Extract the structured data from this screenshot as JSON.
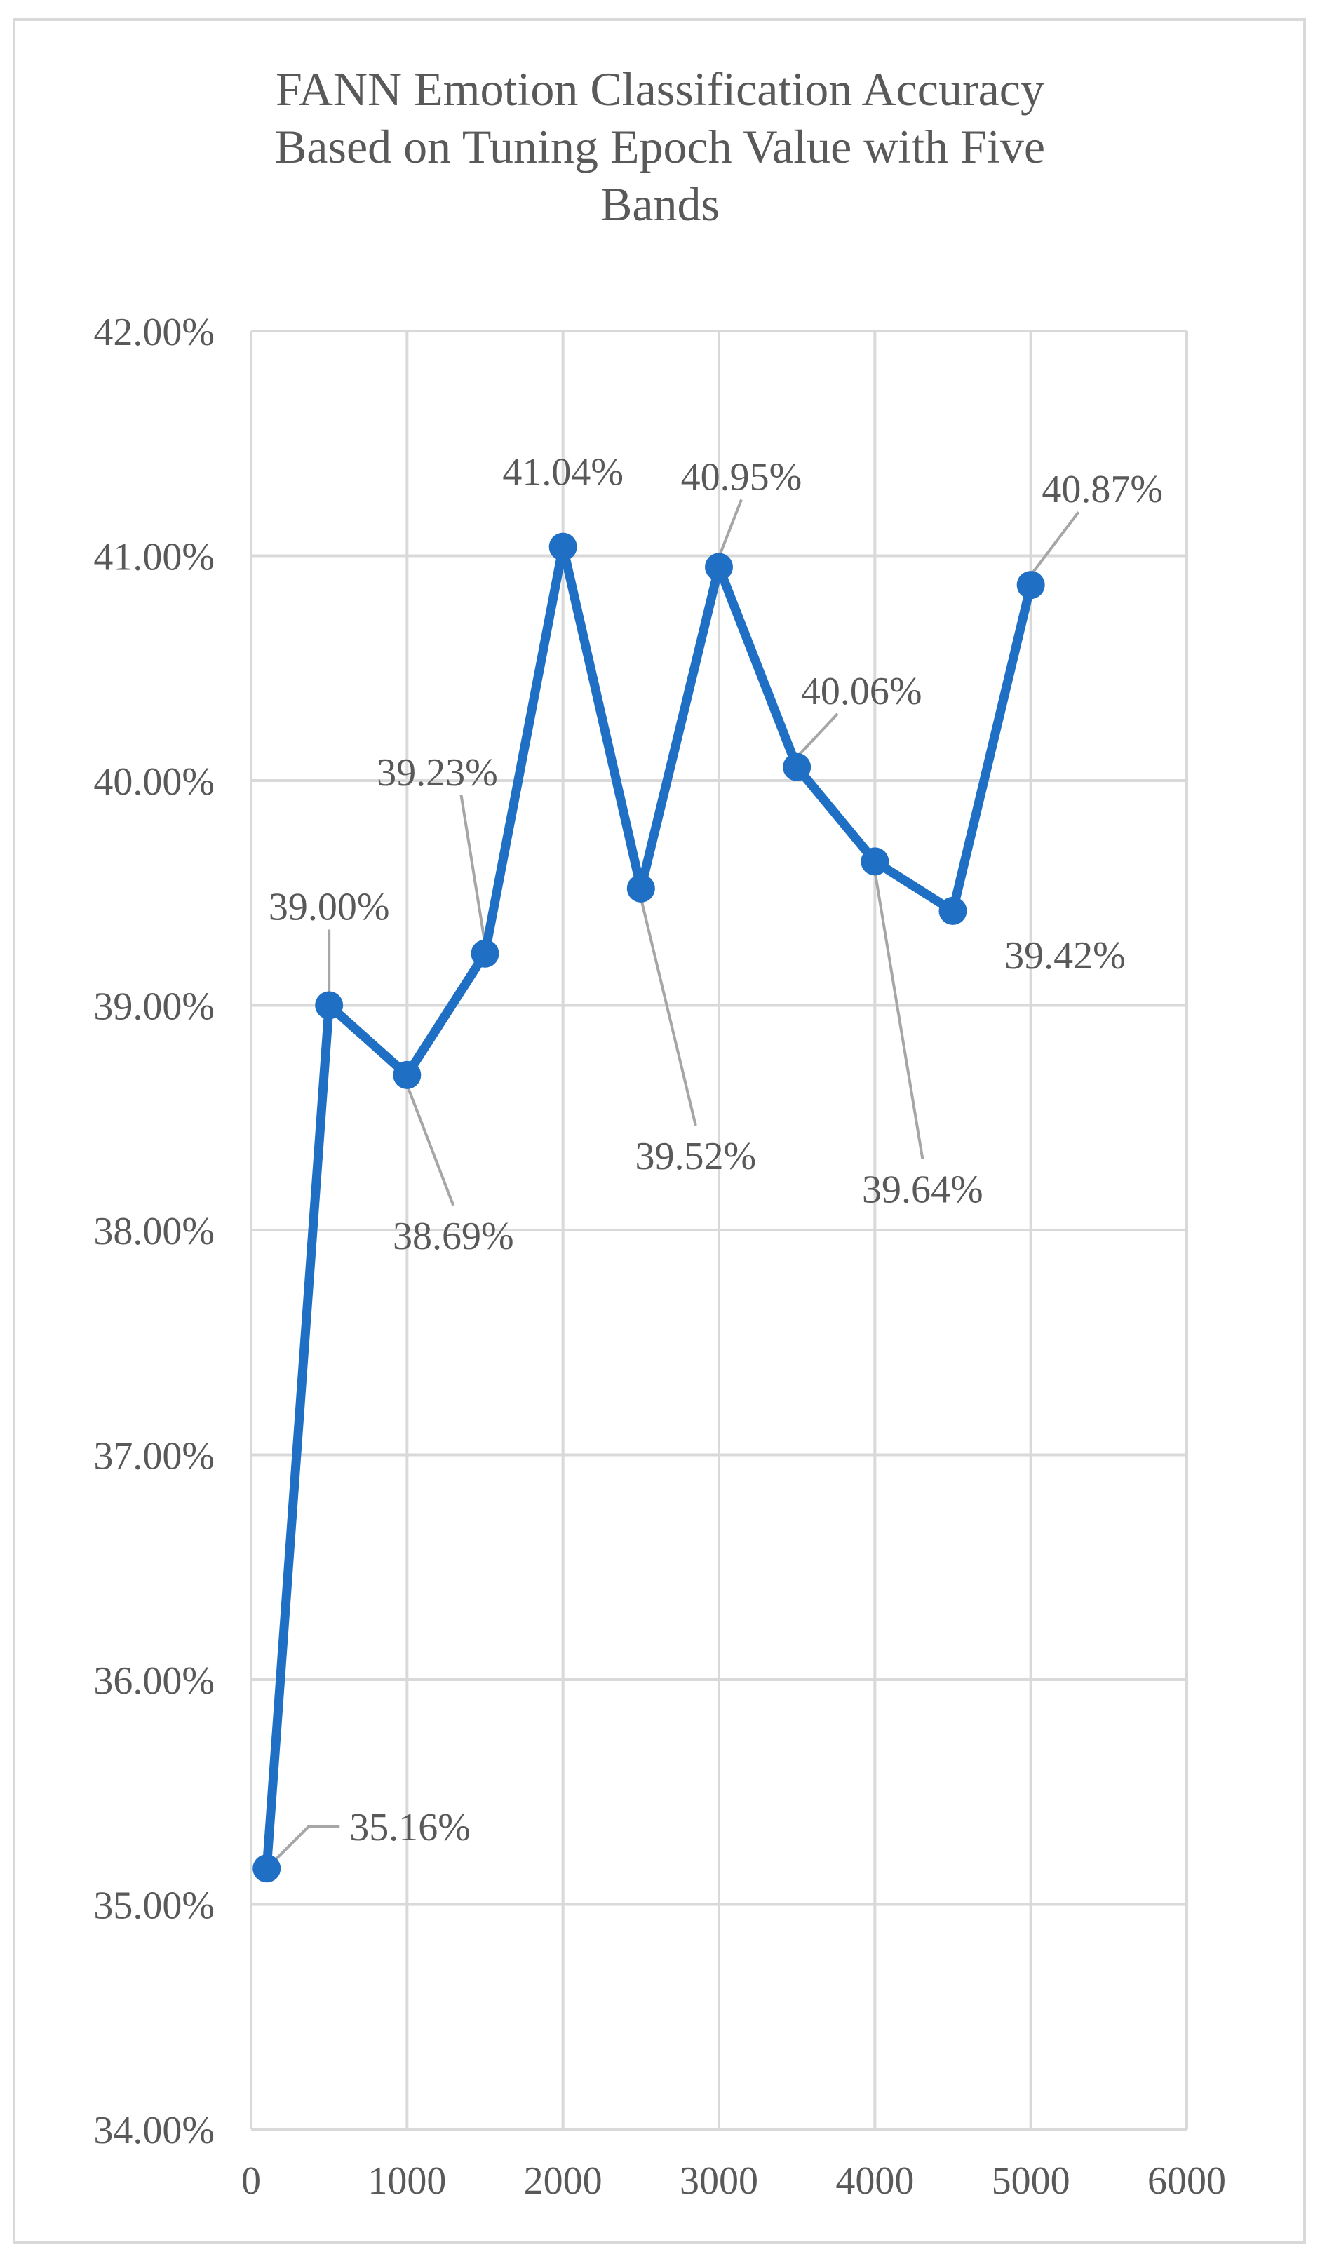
{
  "chart_data": {
    "type": "line",
    "title_lines": [
      "FANN Emotion Classification Accuracy",
      "Based on Tuning Epoch Value with Five",
      "Bands"
    ],
    "xlabel": "",
    "ylabel": "",
    "xlim": [
      0,
      6000
    ],
    "ylim": [
      34,
      42
    ],
    "x_ticks": [
      {
        "value": 0,
        "label": "0"
      },
      {
        "value": 1000,
        "label": "1000"
      },
      {
        "value": 2000,
        "label": "2000"
      },
      {
        "value": 3000,
        "label": "3000"
      },
      {
        "value": 4000,
        "label": "4000"
      },
      {
        "value": 5000,
        "label": "5000"
      },
      {
        "value": 6000,
        "label": "6000"
      }
    ],
    "y_ticks": [
      {
        "value": 34,
        "label": "34.00%"
      },
      {
        "value": 35,
        "label": "35.00%"
      },
      {
        "value": 36,
        "label": "36.00%"
      },
      {
        "value": 37,
        "label": "37.00%"
      },
      {
        "value": 38,
        "label": "38.00%"
      },
      {
        "value": 39,
        "label": "39.00%"
      },
      {
        "value": 40,
        "label": "40.00%"
      },
      {
        "value": 41,
        "label": "41.00%"
      },
      {
        "value": 42,
        "label": "42.00%"
      }
    ],
    "grid": true,
    "legend": "none",
    "colors": {
      "line": "#1f6fc5",
      "grid": "#d9d9d9",
      "text": "#595959",
      "leader": "#a6a6a6",
      "border": "#d9d9d9"
    },
    "series": [
      {
        "x": [
          100,
          500,
          1000,
          1500,
          2000,
          2500,
          3000,
          3500,
          4000,
          4500,
          5000
        ],
        "values": [
          35.16,
          39.0,
          38.69,
          39.23,
          41.04,
          39.52,
          40.95,
          40.06,
          39.64,
          39.42,
          40.87
        ],
        "data_labels": [
          "35.16%",
          "39.00%",
          "38.69%",
          "39.23%",
          "41.04%",
          "39.52%",
          "40.95%",
          "40.06%",
          "39.64%",
          "39.42%",
          "40.87%"
        ]
      }
    ]
  }
}
